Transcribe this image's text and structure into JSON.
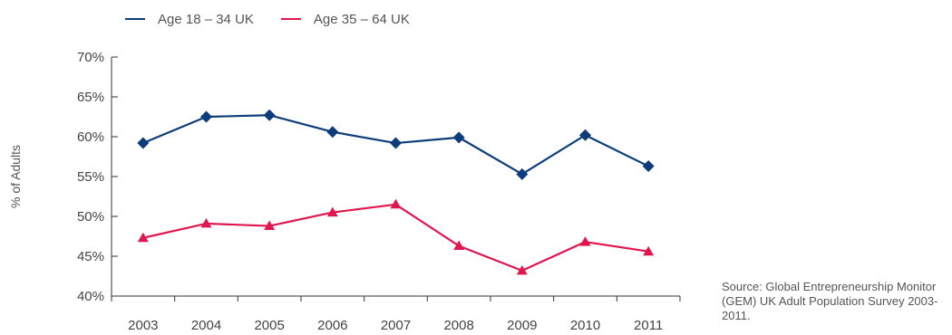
{
  "chart_data": {
    "type": "line",
    "categories": [
      "2003",
      "2004",
      "2005",
      "2006",
      "2007",
      "2008",
      "2009",
      "2010",
      "2011"
    ],
    "series": [
      {
        "name": "Age 18 – 34 UK",
        "color": "#0c3c7a",
        "marker": "diamond",
        "values": [
          59.2,
          62.5,
          62.7,
          60.6,
          59.2,
          59.9,
          55.3,
          60.2,
          56.3
        ]
      },
      {
        "name": "Age 35 – 64 UK",
        "color": "#e0174f",
        "marker": "triangle",
        "values": [
          47.3,
          49.1,
          48.8,
          50.5,
          51.5,
          46.3,
          43.2,
          46.8,
          45.6
        ]
      }
    ],
    "ylabel": "% of Adults",
    "xlabel": "",
    "ylim": [
      40,
      70
    ],
    "yticks": [
      40,
      45,
      50,
      55,
      60,
      65,
      70
    ],
    "ytick_labels": [
      "40%",
      "45%",
      "50%",
      "55%",
      "60%",
      "65%",
      "70%"
    ],
    "grid": false,
    "legend_position": "top-left",
    "axis_color": "#333333"
  },
  "source_text": "Source: Global Entrepreneurship Monitor (GEM) UK Adult Population Survey 2003-2011."
}
